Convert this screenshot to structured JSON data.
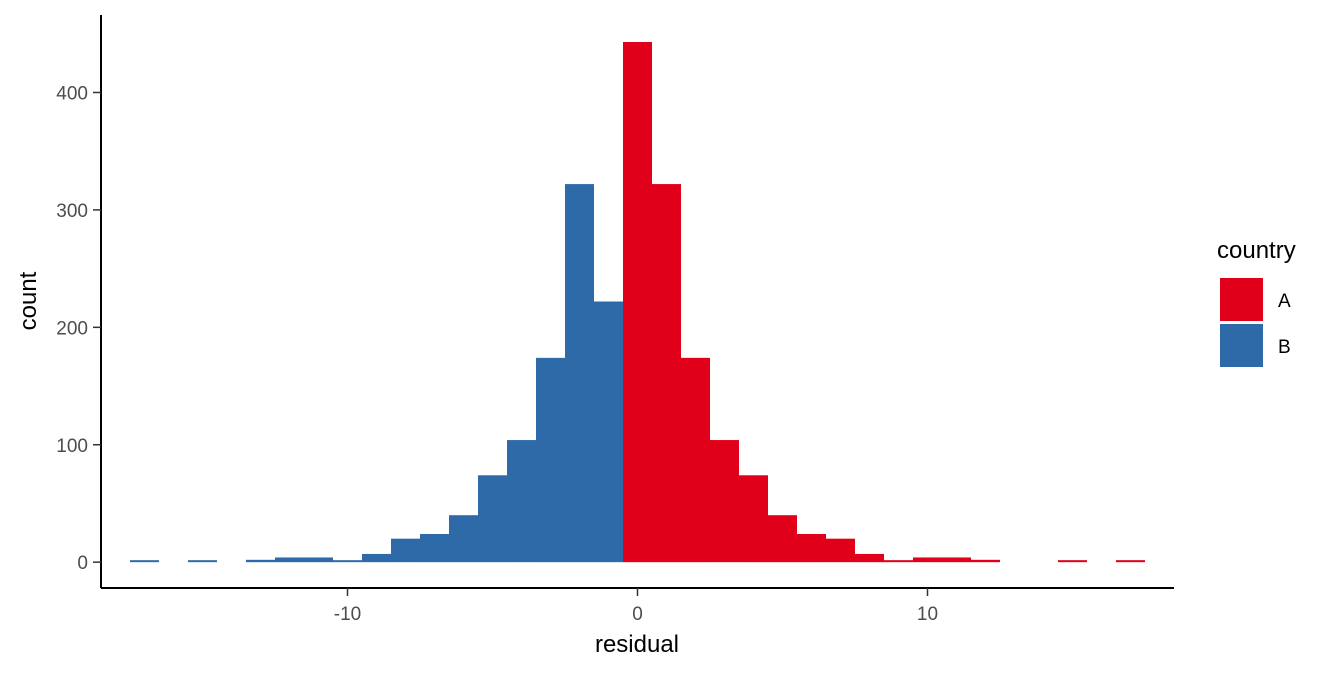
{
  "chart_data": {
    "type": "bar",
    "subtype": "histogram",
    "position": "stack",
    "xlabel": "residual",
    "ylabel": "count",
    "xlim": [
      -18.5,
      18.5
    ],
    "ylim": [
      -22,
      466
    ],
    "x_ticks": [
      {
        "value": -10,
        "label": "-10"
      },
      {
        "value": 0,
        "label": "0"
      },
      {
        "value": 10,
        "label": "10"
      }
    ],
    "y_ticks": [
      {
        "value": 0,
        "label": "0"
      },
      {
        "value": 100,
        "label": "100"
      },
      {
        "value": 200,
        "label": "200"
      },
      {
        "value": 300,
        "label": "300"
      },
      {
        "value": 400,
        "label": "400"
      }
    ],
    "grid": false,
    "legend": {
      "title": "country",
      "position": "right"
    },
    "bins": [
      {
        "x_min": -17.5,
        "x_max": -16.5
      },
      {
        "x_min": -16.5,
        "x_max": -15.5
      },
      {
        "x_min": -15.5,
        "x_max": -14.5
      },
      {
        "x_min": -14.5,
        "x_max": -13.5
      },
      {
        "x_min": -13.5,
        "x_max": -12.5
      },
      {
        "x_min": -12.5,
        "x_max": -11.5
      },
      {
        "x_min": -11.5,
        "x_max": -10.5
      },
      {
        "x_min": -10.5,
        "x_max": -9.5
      },
      {
        "x_min": -9.5,
        "x_max": -8.5
      },
      {
        "x_min": -8.5,
        "x_max": -7.5
      },
      {
        "x_min": -7.5,
        "x_max": -6.5
      },
      {
        "x_min": -6.5,
        "x_max": -5.5
      },
      {
        "x_min": -5.5,
        "x_max": -4.5
      },
      {
        "x_min": -4.5,
        "x_max": -3.5
      },
      {
        "x_min": -3.5,
        "x_max": -2.5
      },
      {
        "x_min": -2.5,
        "x_max": -1.5
      },
      {
        "x_min": -1.5,
        "x_max": -0.5
      },
      {
        "x_min": -0.5,
        "x_max": 0.5
      },
      {
        "x_min": 0.5,
        "x_max": 1.5
      },
      {
        "x_min": 1.5,
        "x_max": 2.5
      },
      {
        "x_min": 2.5,
        "x_max": 3.5
      },
      {
        "x_min": 3.5,
        "x_max": 4.5
      },
      {
        "x_min": 4.5,
        "x_max": 5.5
      },
      {
        "x_min": 5.5,
        "x_max": 6.5
      },
      {
        "x_min": 6.5,
        "x_max": 7.5
      },
      {
        "x_min": 7.5,
        "x_max": 8.5
      },
      {
        "x_min": 8.5,
        "x_max": 9.5
      },
      {
        "x_min": 9.5,
        "x_max": 10.5
      },
      {
        "x_min": 10.5,
        "x_max": 11.5
      },
      {
        "x_min": 11.5,
        "x_max": 12.5
      },
      {
        "x_min": 12.5,
        "x_max": 13.5
      },
      {
        "x_min": 13.5,
        "x_max": 14.5
      },
      {
        "x_min": 14.5,
        "x_max": 15.5
      },
      {
        "x_min": 15.5,
        "x_max": 16.5
      },
      {
        "x_min": 16.5,
        "x_max": 17.5
      }
    ],
    "series": [
      {
        "name": "A",
        "color": "#e0001a",
        "values": [
          0,
          0,
          0,
          0,
          0,
          0,
          0,
          0,
          0,
          0,
          0,
          0,
          0,
          0,
          0,
          0,
          0,
          443,
          322,
          174,
          104,
          74,
          40,
          24,
          20,
          7,
          1,
          4,
          4,
          2,
          0,
          0,
          1,
          0,
          1
        ]
      },
      {
        "name": "B",
        "color": "#2e6aa8",
        "values": [
          1,
          0,
          1,
          0,
          2,
          4,
          4,
          1,
          7,
          20,
          24,
          40,
          74,
          104,
          174,
          322,
          222,
          0,
          0,
          0,
          0,
          0,
          0,
          0,
          0,
          0,
          0,
          0,
          0,
          0,
          0,
          0,
          0,
          0,
          0
        ]
      }
    ]
  }
}
